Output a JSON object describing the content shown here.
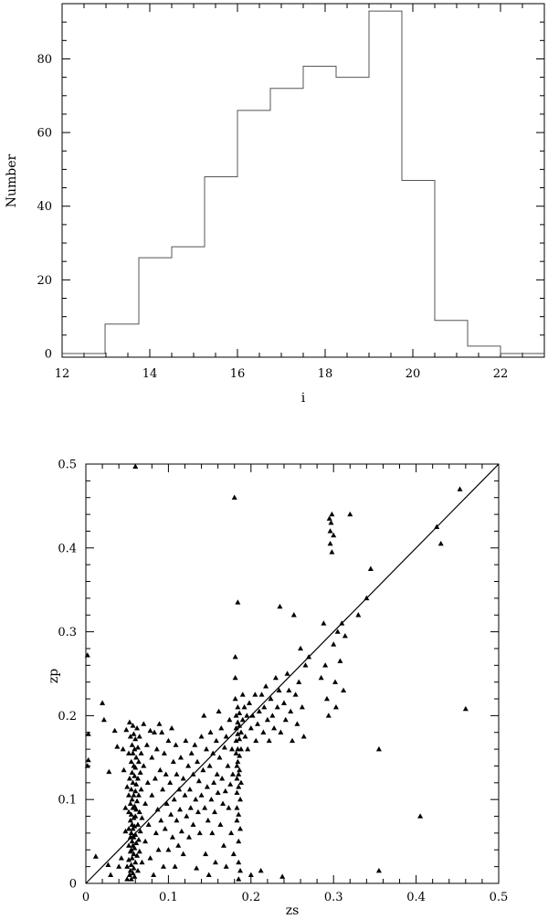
{
  "chart_data": [
    {
      "type": "histogram",
      "xlabel": "i",
      "ylabel": "Number",
      "xlim": [
        12,
        23
      ],
      "ylim": [
        -1,
        95
      ],
      "xticks": [
        "12",
        "14",
        "16",
        "18",
        "20",
        "22"
      ],
      "yticks": [
        "0",
        "20",
        "40",
        "60",
        "80"
      ],
      "bins": [
        {
          "x0": 12.0,
          "x1": 12.98,
          "count": 0
        },
        {
          "x0": 12.98,
          "x1": 13.75,
          "count": 8
        },
        {
          "x0": 13.75,
          "x1": 14.5,
          "count": 26
        },
        {
          "x0": 14.5,
          "x1": 15.25,
          "count": 29
        },
        {
          "x0": 15.25,
          "x1": 16.0,
          "count": 48
        },
        {
          "x0": 16.0,
          "x1": 16.75,
          "count": 66
        },
        {
          "x0": 16.75,
          "x1": 17.5,
          "count": 72
        },
        {
          "x0": 17.5,
          "x1": 18.25,
          "count": 78
        },
        {
          "x0": 18.25,
          "x1": 19.0,
          "count": 75
        },
        {
          "x0": 19.0,
          "x1": 19.75,
          "count": 93
        },
        {
          "x0": 19.75,
          "x1": 20.5,
          "count": 47
        },
        {
          "x0": 20.5,
          "x1": 21.25,
          "count": 9
        },
        {
          "x0": 21.25,
          "x1": 22.0,
          "count": 2
        },
        {
          "x0": 22.0,
          "x1": 23.0,
          "count": 0
        }
      ]
    },
    {
      "type": "scatter",
      "xlabel": "zs",
      "ylabel": "zp",
      "xlim": [
        0,
        0.5
      ],
      "ylim": [
        0,
        0.5
      ],
      "xticks": [
        "0",
        "0.1",
        "0.2",
        "0.3",
        "0.4",
        "0.5"
      ],
      "yticks": [
        "0",
        "0.1",
        "0.2",
        "0.3",
        "0.4",
        "0.5"
      ],
      "reference_line": {
        "x": [
          0,
          0.5
        ],
        "y": [
          0,
          0.5
        ]
      },
      "points": [
        [
          0.002,
          0.272
        ],
        [
          0.003,
          0.178
        ],
        [
          0.003,
          0.147
        ],
        [
          0.002,
          0.14
        ],
        [
          0.012,
          0.032
        ],
        [
          0.02,
          0.215
        ],
        [
          0.022,
          0.195
        ],
        [
          0.027,
          0.022
        ],
        [
          0.028,
          0.133
        ],
        [
          0.03,
          0.01
        ],
        [
          0.035,
          0.182
        ],
        [
          0.038,
          0.163
        ],
        [
          0.04,
          0.02
        ],
        [
          0.043,
          0.03
        ],
        [
          0.045,
          0.16
        ],
        [
          0.046,
          0.135
        ],
        [
          0.048,
          0.09
        ],
        [
          0.048,
          0.062
        ],
        [
          0.049,
          0.183
        ],
        [
          0.05,
          0.115
        ],
        [
          0.05,
          0.02
        ],
        [
          0.05,
          0.005
        ],
        [
          0.052,
          0.155
        ],
        [
          0.052,
          0.105
        ],
        [
          0.052,
          0.085
        ],
        [
          0.052,
          0.065
        ],
        [
          0.052,
          0.045
        ],
        [
          0.052,
          0.028
        ],
        [
          0.053,
          0.192
        ],
        [
          0.053,
          0.125
        ],
        [
          0.053,
          0.01
        ],
        [
          0.054,
          0.175
        ],
        [
          0.054,
          0.095
        ],
        [
          0.054,
          0.075
        ],
        [
          0.054,
          0.055
        ],
        [
          0.054,
          0.038
        ],
        [
          0.054,
          0.015
        ],
        [
          0.055,
          0.145
        ],
        [
          0.055,
          0.112
        ],
        [
          0.055,
          0.082
        ],
        [
          0.055,
          0.06
        ],
        [
          0.055,
          0.04
        ],
        [
          0.055,
          0.022
        ],
        [
          0.055,
          0.005
        ],
        [
          0.056,
          0.165
        ],
        [
          0.056,
          0.132
        ],
        [
          0.056,
          0.1
        ],
        [
          0.056,
          0.07
        ],
        [
          0.056,
          0.05
        ],
        [
          0.056,
          0.03
        ],
        [
          0.057,
          0.188
        ],
        [
          0.057,
          0.155
        ],
        [
          0.057,
          0.12
        ],
        [
          0.057,
          0.09
        ],
        [
          0.057,
          0.065
        ],
        [
          0.057,
          0.045
        ],
        [
          0.057,
          0.012
        ],
        [
          0.058,
          0.178
        ],
        [
          0.058,
          0.14
        ],
        [
          0.058,
          0.105
        ],
        [
          0.058,
          0.078
        ],
        [
          0.058,
          0.055
        ],
        [
          0.058,
          0.035
        ],
        [
          0.058,
          0.018
        ],
        [
          0.059,
          0.16
        ],
        [
          0.059,
          0.128
        ],
        [
          0.059,
          0.092
        ],
        [
          0.059,
          0.068
        ],
        [
          0.059,
          0.042
        ],
        [
          0.059,
          0.008
        ],
        [
          0.06,
          0.172
        ],
        [
          0.06,
          0.138
        ],
        [
          0.06,
          0.11
        ],
        [
          0.06,
          0.08
        ],
        [
          0.06,
          0.058
        ],
        [
          0.06,
          0.025
        ],
        [
          0.061,
          0.15
        ],
        [
          0.061,
          0.118
        ],
        [
          0.061,
          0.088
        ],
        [
          0.061,
          0.048
        ],
        [
          0.062,
          0.185
        ],
        [
          0.062,
          0.098
        ],
        [
          0.062,
          0.033
        ],
        [
          0.063,
          0.162
        ],
        [
          0.063,
          0.125
        ],
        [
          0.063,
          0.07
        ],
        [
          0.063,
          0.015
        ],
        [
          0.064,
          0.145
        ],
        [
          0.064,
          0.105
        ],
        [
          0.064,
          0.052
        ],
        [
          0.065,
          0.175
        ],
        [
          0.065,
          0.085
        ],
        [
          0.065,
          0.038
        ],
        [
          0.066,
          0.132
        ],
        [
          0.066,
          0.062
        ],
        [
          0.067,
          0.155
        ],
        [
          0.067,
          0.112
        ],
        [
          0.068,
          0.025
        ],
        [
          0.068,
          0.078
        ],
        [
          0.06,
          0.497
        ],
        [
          0.07,
          0.19
        ],
        [
          0.07,
          0.14
        ],
        [
          0.072,
          0.095
        ],
        [
          0.072,
          0.05
        ],
        [
          0.074,
          0.165
        ],
        [
          0.075,
          0.12
        ],
        [
          0.076,
          0.07
        ],
        [
          0.078,
          0.182
        ],
        [
          0.078,
          0.03
        ],
        [
          0.08,
          0.15
        ],
        [
          0.08,
          0.105
        ],
        [
          0.082,
          0.01
        ],
        [
          0.083,
          0.18
        ],
        [
          0.084,
          0.125
        ],
        [
          0.085,
          0.06
        ],
        [
          0.086,
          0.16
        ],
        [
          0.087,
          0.088
        ],
        [
          0.088,
          0.04
        ],
        [
          0.089,
          0.19
        ],
        [
          0.09,
          0.135
        ],
        [
          0.091,
          0.075
        ],
        [
          0.092,
          0.18
        ],
        [
          0.093,
          0.112
        ],
        [
          0.094,
          0.02
        ],
        [
          0.095,
          0.155
        ],
        [
          0.096,
          0.065
        ],
        [
          0.097,
          0.13
        ],
        [
          0.098,
          0.095
        ],
        [
          0.1,
          0.17
        ],
        [
          0.1,
          0.04
        ],
        [
          0.102,
          0.12
        ],
        [
          0.103,
          0.082
        ],
        [
          0.104,
          0.185
        ],
        [
          0.105,
          0.055
        ],
        [
          0.106,
          0.145
        ],
        [
          0.107,
          0.1
        ],
        [
          0.108,
          0.02
        ],
        [
          0.109,
          0.165
        ],
        [
          0.11,
          0.075
        ],
        [
          0.11,
          0.13
        ],
        [
          0.112,
          0.045
        ],
        [
          0.113,
          0.112
        ],
        [
          0.114,
          0.088
        ],
        [
          0.115,
          0.15
        ],
        [
          0.116,
          0.062
        ],
        [
          0.118,
          0.125
        ],
        [
          0.118,
          0.035
        ],
        [
          0.12,
          0.105
        ],
        [
          0.121,
          0.17
        ],
        [
          0.122,
          0.08
        ],
        [
          0.124,
          0.14
        ],
        [
          0.125,
          0.055
        ],
        [
          0.126,
          0.112
        ],
        [
          0.127,
          0.09
        ],
        [
          0.128,
          0.155
        ],
        [
          0.13,
          0.13
        ],
        [
          0.13,
          0.07
        ],
        [
          0.132,
          0.165
        ],
        [
          0.133,
          0.1
        ],
        [
          0.134,
          0.018
        ],
        [
          0.135,
          0.145
        ],
        [
          0.136,
          0.085
        ],
        [
          0.137,
          0.122
        ],
        [
          0.138,
          0.06
        ],
        [
          0.14,
          0.175
        ],
        [
          0.14,
          0.105
        ],
        [
          0.142,
          0.135
        ],
        [
          0.143,
          0.2
        ],
        [
          0.144,
          0.09
        ],
        [
          0.145,
          0.035
        ],
        [
          0.146,
          0.16
        ],
        [
          0.147,
          0.115
        ],
        [
          0.148,
          0.075
        ],
        [
          0.149,
          0.01
        ],
        [
          0.15,
          0.14
        ],
        [
          0.151,
          0.18
        ],
        [
          0.152,
          0.1
        ],
        [
          0.153,
          0.06
        ],
        [
          0.154,
          0.155
        ],
        [
          0.155,
          0.12
        ],
        [
          0.156,
          0.085
        ],
        [
          0.157,
          0.025
        ],
        [
          0.158,
          0.17
        ],
        [
          0.159,
          0.13
        ],
        [
          0.16,
          0.108
        ],
        [
          0.161,
          0.205
        ],
        [
          0.162,
          0.15
        ],
        [
          0.163,
          0.07
        ],
        [
          0.164,
          0.185
        ],
        [
          0.165,
          0.125
        ],
        [
          0.166,
          0.095
        ],
        [
          0.167,
          0.045
        ],
        [
          0.168,
          0.162
        ],
        [
          0.169,
          0.11
        ],
        [
          0.17,
          0.175
        ],
        [
          0.17,
          0.02
        ],
        [
          0.172,
          0.14
        ],
        [
          0.173,
          0.09
        ],
        [
          0.174,
          0.195
        ],
        [
          0.175,
          0.118
        ],
        [
          0.176,
          0.06
        ],
        [
          0.177,
          0.16
        ],
        [
          0.178,
          0.13
        ],
        [
          0.179,
          0.035
        ],
        [
          0.18,
          0.46
        ],
        [
          0.181,
          0.27
        ],
        [
          0.181,
          0.245
        ],
        [
          0.181,
          0.22
        ],
        [
          0.182,
          0.2
        ],
        [
          0.182,
          0.185
        ],
        [
          0.182,
          0.17
        ],
        [
          0.182,
          0.155
        ],
        [
          0.183,
          0.14
        ],
        [
          0.183,
          0.125
        ],
        [
          0.183,
          0.108
        ],
        [
          0.183,
          0.09
        ],
        [
          0.183,
          0.075
        ],
        [
          0.184,
          0.335
        ],
        [
          0.184,
          0.21
        ],
        [
          0.184,
          0.192
        ],
        [
          0.184,
          0.178
        ],
        [
          0.184,
          0.16
        ],
        [
          0.184,
          0.145
        ],
        [
          0.185,
          0.13
        ],
        [
          0.185,
          0.115
        ],
        [
          0.185,
          0.082
        ],
        [
          0.185,
          0.05
        ],
        [
          0.185,
          0.025
        ],
        [
          0.185,
          0.005
        ],
        [
          0.186,
          0.203
        ],
        [
          0.186,
          0.188
        ],
        [
          0.186,
          0.172
        ],
        [
          0.186,
          0.152
        ],
        [
          0.186,
          0.135
        ],
        [
          0.187,
          0.1
        ],
        [
          0.187,
          0.065
        ],
        [
          0.187,
          0.015
        ],
        [
          0.188,
          0.18
        ],
        [
          0.188,
          0.16
        ],
        [
          0.188,
          0.12
        ],
        [
          0.19,
          0.225
        ],
        [
          0.19,
          0.195
        ],
        [
          0.192,
          0.21
        ],
        [
          0.193,
          0.175
        ],
        [
          0.195,
          0.2
        ],
        [
          0.196,
          0.16
        ],
        [
          0.198,
          0.215
        ],
        [
          0.2,
          0.185
        ],
        [
          0.2,
          0.01
        ],
        [
          0.202,
          0.2
        ],
        [
          0.205,
          0.225
        ],
        [
          0.206,
          0.17
        ],
        [
          0.208,
          0.19
        ],
        [
          0.21,
          0.205
        ],
        [
          0.212,
          0.015
        ],
        [
          0.213,
          0.225
        ],
        [
          0.215,
          0.18
        ],
        [
          0.216,
          0.21
        ],
        [
          0.218,
          0.235
        ],
        [
          0.22,
          0.195
        ],
        [
          0.222,
          0.17
        ],
        [
          0.224,
          0.22
        ],
        [
          0.226,
          0.2
        ],
        [
          0.228,
          0.185
        ],
        [
          0.23,
          0.245
        ],
        [
          0.232,
          0.21
        ],
        [
          0.234,
          0.23
        ],
        [
          0.235,
          0.33
        ],
        [
          0.236,
          0.18
        ],
        [
          0.238,
          0.008
        ],
        [
          0.24,
          0.215
        ],
        [
          0.242,
          0.195
        ],
        [
          0.244,
          0.25
        ],
        [
          0.246,
          0.23
        ],
        [
          0.248,
          0.205
        ],
        [
          0.25,
          0.17
        ],
        [
          0.252,
          0.32
        ],
        [
          0.254,
          0.225
        ],
        [
          0.256,
          0.19
        ],
        [
          0.258,
          0.24
        ],
        [
          0.26,
          0.28
        ],
        [
          0.262,
          0.21
        ],
        [
          0.264,
          0.175
        ],
        [
          0.266,
          0.26
        ],
        [
          0.27,
          0.27
        ],
        [
          0.285,
          0.245
        ],
        [
          0.288,
          0.31
        ],
        [
          0.29,
          0.26
        ],
        [
          0.292,
          0.22
        ],
        [
          0.294,
          0.2
        ],
        [
          0.295,
          0.435
        ],
        [
          0.296,
          0.405
        ],
        [
          0.296,
          0.42
        ],
        [
          0.297,
          0.43
        ],
        [
          0.298,
          0.395
        ],
        [
          0.298,
          0.44
        ],
        [
          0.3,
          0.415
        ],
        [
          0.3,
          0.285
        ],
        [
          0.302,
          0.24
        ],
        [
          0.303,
          0.21
        ],
        [
          0.305,
          0.3
        ],
        [
          0.308,
          0.265
        ],
        [
          0.31,
          0.31
        ],
        [
          0.312,
          0.23
        ],
        [
          0.314,
          0.295
        ],
        [
          0.32,
          0.44
        ],
        [
          0.33,
          0.32
        ],
        [
          0.34,
          0.34
        ],
        [
          0.345,
          0.375
        ],
        [
          0.355,
          0.16
        ],
        [
          0.355,
          0.015
        ],
        [
          0.405,
          0.08
        ],
        [
          0.425,
          0.425
        ],
        [
          0.43,
          0.405
        ],
        [
          0.453,
          0.47
        ],
        [
          0.46,
          0.208
        ]
      ]
    }
  ]
}
